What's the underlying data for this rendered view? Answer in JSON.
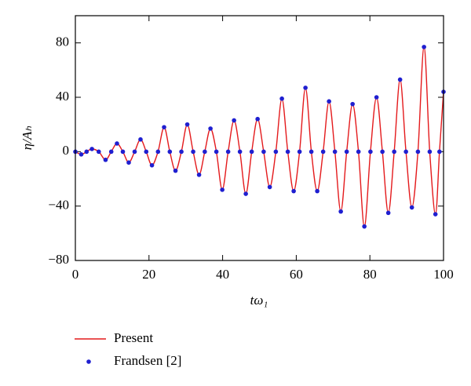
{
  "chart_data": {
    "type": "line",
    "xlabel": "tω₁",
    "ylabel": "η/Aₕ",
    "x": [
      0,
      1.6,
      3.05,
      4.5,
      6.35,
      8.2,
      9.75,
      11.3,
      12.9,
      14.5,
      16.1,
      17.7,
      19.25,
      20.8,
      22.45,
      24.1,
      25.65,
      27.2,
      28.8,
      30.4,
      32,
      33.6,
      35.15,
      36.7,
      38.3,
      39.9,
      41.5,
      43.1,
      44.7,
      46.3,
      47.9,
      49.5,
      51.15,
      52.8,
      54.45,
      56.1,
      57.7,
      59.3,
      60.9,
      62.5,
      64.1,
      65.7,
      67.3,
      68.9,
      70.5,
      72.1,
      73.7,
      75.3,
      76.9,
      78.5,
      80.15,
      81.8,
      83.4,
      85,
      86.6,
      88.2,
      89.8,
      91.4,
      93.05,
      94.7,
      96.25,
      97.8,
      98.9,
      100
    ],
    "series": [
      {
        "name": "Present",
        "color": "#e41a1c",
        "style": "line",
        "values": [
          0,
          -2,
          0,
          2,
          0,
          -6,
          0,
          6,
          0,
          -8,
          0,
          9,
          0,
          -10,
          0,
          18,
          0,
          -14,
          0,
          20,
          0,
          -17,
          0,
          17,
          0,
          -28,
          0,
          23,
          0,
          -31,
          0,
          24,
          0,
          -26,
          0,
          39,
          0,
          -29,
          0,
          47,
          0,
          -29,
          0,
          37,
          0,
          -44,
          0,
          35,
          0,
          -55,
          0,
          40,
          0,
          -45,
          0,
          53,
          0,
          -41,
          0,
          77,
          0,
          -46,
          0,
          44
        ]
      },
      {
        "name": "Frandsen [2]",
        "color": "#1f1fd0",
        "style": "marker",
        "values": [
          0,
          -2,
          0,
          2,
          0,
          -6,
          0,
          6,
          0,
          -8,
          0,
          9,
          0,
          -10,
          0,
          18,
          0,
          -14,
          0,
          20,
          0,
          -17,
          0,
          17,
          0,
          -28,
          0,
          23,
          0,
          -31,
          0,
          24,
          0,
          -26,
          0,
          39,
          0,
          -29,
          0,
          47,
          0,
          -29,
          0,
          37,
          0,
          -44,
          0,
          35,
          0,
          -55,
          0,
          40,
          0,
          -45,
          0,
          53,
          0,
          -41,
          0,
          77,
          0,
          -46,
          0,
          44
        ]
      }
    ],
    "xlim": [
      0,
      100
    ],
    "xticks": [
      0,
      20,
      40,
      60,
      80,
      100
    ],
    "ylim": [
      -80,
      100
    ],
    "yticks": [
      {
        "value": -80,
        "label": "−80"
      },
      {
        "value": -40,
        "label": "−40"
      },
      0,
      40,
      80
    ],
    "legend": "bottom"
  }
}
